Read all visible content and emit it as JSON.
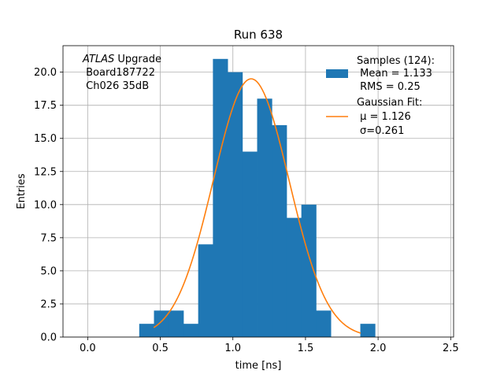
{
  "chart_data": {
    "type": "bar",
    "title": "Run 638",
    "xlabel": "time [ns]",
    "ylabel": "Entries",
    "xlim": [
      -0.17,
      2.52
    ],
    "ylim": [
      0,
      22.0
    ],
    "xticks": [
      0.0,
      0.5,
      1.0,
      1.5,
      2.0,
      2.5
    ],
    "xtick_labels": [
      "0.0",
      "0.5",
      "1.0",
      "1.5",
      "2.0",
      "2.5"
    ],
    "yticks": [
      0.0,
      2.5,
      5.0,
      7.5,
      10.0,
      12.5,
      15.0,
      17.5,
      20.0
    ],
    "ytick_labels": [
      "0.0",
      "2.5",
      "5.0",
      "7.5",
      "10.0",
      "12.5",
      "15.0",
      "17.5",
      "20.0"
    ],
    "grid": true,
    "bar_color": "#1f77b4",
    "line_color": "#ff7f0e",
    "histogram": {
      "bin_edges": [
        0.355,
        0.4565,
        0.558,
        0.6595,
        0.761,
        0.8625,
        0.964,
        1.0655,
        1.167,
        1.2685,
        1.37,
        1.4715,
        1.573,
        1.6745,
        1.776,
        1.8775,
        1.979
      ],
      "counts": [
        1,
        2,
        2,
        1,
        7,
        21,
        20,
        14,
        18,
        16,
        9,
        10,
        2,
        0,
        0,
        1
      ]
    },
    "gaussian_fit": {
      "mu": 1.126,
      "sigma": 0.261,
      "amplitude": 19.5,
      "x_range": [
        0.455,
        1.88
      ]
    },
    "annotation": {
      "italic": "ATLAS",
      "first_line_rest": " Upgrade",
      "lines": [
        " Board187722",
        " Ch026 35dB"
      ]
    },
    "legend": {
      "position": "top-right",
      "samples": {
        "label": "Samples (124):",
        "mean": " Mean = 1.133",
        "rms": " RMS = 0.25"
      },
      "fit": {
        "label": "Gaussian Fit:",
        "mu": " μ = 1.126",
        "sigma": "σ=0.261"
      }
    }
  }
}
